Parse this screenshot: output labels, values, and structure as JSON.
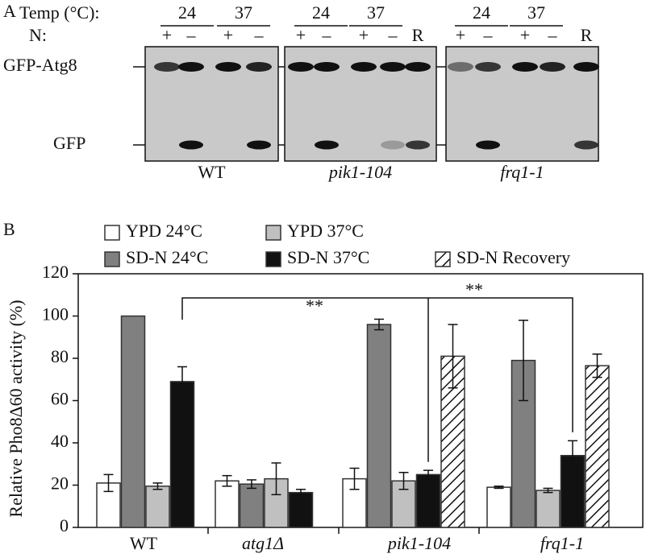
{
  "panel_a": {
    "label": "A",
    "temp_label": "Temp (°C):",
    "n_label": "N:",
    "rows": [
      "GFP-Atg8",
      "GFP"
    ],
    "blots": [
      {
        "strain": "WT",
        "temps": [
          "24",
          "37"
        ],
        "lanes": [
          "+",
          "–",
          "+",
          "–"
        ]
      },
      {
        "strain": "pik1-104",
        "temps": [
          "24",
          "37"
        ],
        "lanes": [
          "+",
          "–",
          "+",
          "–",
          "R"
        ]
      },
      {
        "strain": "frq1-1",
        "temps": [
          "24",
          "37"
        ],
        "lanes": [
          "+",
          "–",
          "+",
          "–",
          "R"
        ]
      }
    ]
  },
  "chart_data": {
    "type": "bar",
    "panel_label": "B",
    "ylabel": "Relative Pho8Δ60 activity (%)",
    "categories": [
      "WT",
      "atg1Δ",
      "pik1-104",
      "frq1-1"
    ],
    "series": [
      {
        "name": "YPD 24°C",
        "color": "#ffffff",
        "values": [
          21,
          22,
          23,
          19
        ],
        "errors": [
          4,
          2.5,
          5,
          0.5
        ]
      },
      {
        "name": "SD-N 24°C",
        "color": "#808080",
        "values": [
          100,
          20.5,
          96,
          79
        ],
        "errors": [
          null,
          2,
          2.5,
          19
        ]
      },
      {
        "name": "YPD 37°C",
        "color": "#c0c0c0",
        "values": [
          19.5,
          23,
          22,
          17.5
        ],
        "errors": [
          1.5,
          7.5,
          4,
          1
        ]
      },
      {
        "name": "SD-N 37°C",
        "color": "#111111",
        "values": [
          69,
          16.5,
          25,
          34
        ],
        "errors": [
          7,
          1.5,
          2,
          7
        ]
      },
      {
        "name": "SD-N Recovery",
        "color": "#ffffff",
        "pattern": "hatch",
        "values": [
          null,
          null,
          81,
          76.5
        ],
        "errors": [
          null,
          null,
          15,
          5.5
        ]
      }
    ],
    "annotations": [
      "**",
      "**"
    ],
    "ylim": [
      0,
      120
    ],
    "yticks": [
      0,
      20,
      40,
      60,
      80,
      100,
      120
    ]
  }
}
